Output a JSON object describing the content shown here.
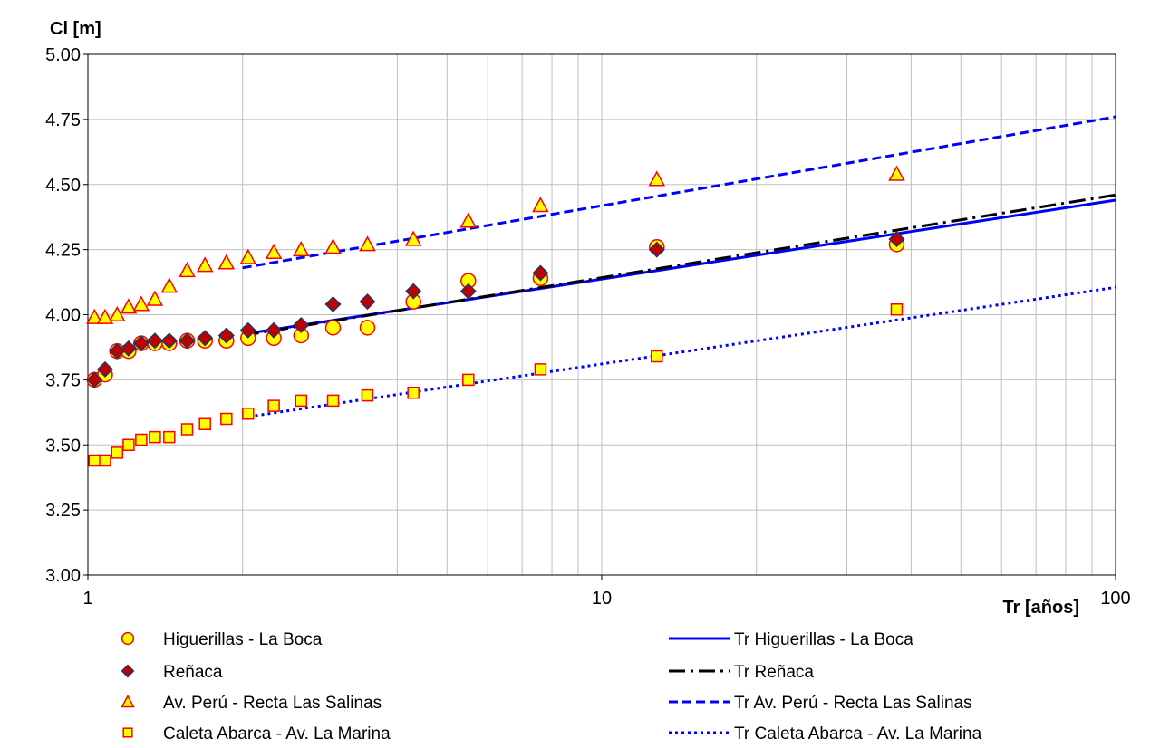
{
  "chart_data": {
    "type": "scatter",
    "xscale": "log",
    "xlim": [
      1,
      100
    ],
    "ylim": [
      3.0,
      5.0
    ],
    "grid": true,
    "legend_position": "bottom",
    "ylabel": "Cl [m]",
    "xlabel": "Tr [años]",
    "x_ticks": [
      "1",
      "10",
      "100"
    ],
    "y_ticks": [
      "3.00",
      "3.25",
      "3.50",
      "3.75",
      "4.00",
      "4.25",
      "4.50",
      "4.75",
      "5.00"
    ],
    "series": [
      {
        "name": "Higuerillas - La Boca",
        "marker": "circle",
        "fill": "#FFFF00",
        "stroke": "#FF0000",
        "points": [
          [
            1.03,
            3.75
          ],
          [
            1.08,
            3.77
          ],
          [
            1.14,
            3.86
          ],
          [
            1.2,
            3.86
          ],
          [
            1.27,
            3.89
          ],
          [
            1.35,
            3.89
          ],
          [
            1.44,
            3.89
          ],
          [
            1.56,
            3.9
          ],
          [
            1.69,
            3.9
          ],
          [
            1.86,
            3.9
          ],
          [
            2.05,
            3.91
          ],
          [
            2.3,
            3.91
          ],
          [
            2.6,
            3.92
          ],
          [
            3.0,
            3.95
          ],
          [
            3.5,
            3.95
          ],
          [
            4.3,
            4.05
          ],
          [
            5.5,
            4.13
          ],
          [
            7.6,
            4.14
          ],
          [
            12.8,
            4.26
          ],
          [
            37.5,
            4.27
          ]
        ]
      },
      {
        "name": "Reñaca",
        "marker": "diamond",
        "fill": "#C00000",
        "stroke": "#1F3864",
        "points": [
          [
            1.03,
            3.75
          ],
          [
            1.08,
            3.79
          ],
          [
            1.14,
            3.86
          ],
          [
            1.2,
            3.87
          ],
          [
            1.27,
            3.89
          ],
          [
            1.35,
            3.9
          ],
          [
            1.44,
            3.9
          ],
          [
            1.56,
            3.9
          ],
          [
            1.69,
            3.91
          ],
          [
            1.86,
            3.92
          ],
          [
            2.05,
            3.94
          ],
          [
            2.3,
            3.94
          ],
          [
            2.6,
            3.96
          ],
          [
            3.0,
            4.04
          ],
          [
            3.5,
            4.05
          ],
          [
            4.3,
            4.09
          ],
          [
            5.5,
            4.09
          ],
          [
            7.6,
            4.16
          ],
          [
            12.8,
            4.25
          ],
          [
            37.5,
            4.29
          ]
        ]
      },
      {
        "name": "Av. Perú - Recta Las Salinas",
        "marker": "triangle",
        "fill": "#FFFF00",
        "stroke": "#FF0000",
        "points": [
          [
            1.03,
            3.99
          ],
          [
            1.08,
            3.99
          ],
          [
            1.14,
            4.0
          ],
          [
            1.2,
            4.03
          ],
          [
            1.27,
            4.04
          ],
          [
            1.35,
            4.06
          ],
          [
            1.44,
            4.11
          ],
          [
            1.56,
            4.17
          ],
          [
            1.69,
            4.19
          ],
          [
            1.86,
            4.2
          ],
          [
            2.05,
            4.22
          ],
          [
            2.3,
            4.24
          ],
          [
            2.6,
            4.25
          ],
          [
            3.0,
            4.26
          ],
          [
            3.5,
            4.27
          ],
          [
            4.3,
            4.29
          ],
          [
            5.5,
            4.36
          ],
          [
            7.6,
            4.42
          ],
          [
            12.8,
            4.52
          ],
          [
            37.5,
            4.54
          ]
        ]
      },
      {
        "name": "Caleta Abarca - Av. La Marina",
        "marker": "square",
        "fill": "#FFFF00",
        "stroke": "#FF0000",
        "points": [
          [
            1.03,
            3.44
          ],
          [
            1.08,
            3.44
          ],
          [
            1.14,
            3.47
          ],
          [
            1.2,
            3.5
          ],
          [
            1.27,
            3.52
          ],
          [
            1.35,
            3.53
          ],
          [
            1.44,
            3.53
          ],
          [
            1.56,
            3.56
          ],
          [
            1.69,
            3.58
          ],
          [
            1.86,
            3.6
          ],
          [
            2.05,
            3.62
          ],
          [
            2.3,
            3.65
          ],
          [
            2.6,
            3.67
          ],
          [
            3.0,
            3.67
          ],
          [
            3.5,
            3.69
          ],
          [
            4.3,
            3.7
          ],
          [
            5.5,
            3.75
          ],
          [
            7.6,
            3.79
          ],
          [
            12.8,
            3.84
          ],
          [
            37.5,
            4.02
          ]
        ]
      }
    ],
    "trends": [
      {
        "name": "Tr Higuerillas - La Boca",
        "style": "solid",
        "color": "#0000FF",
        "points": [
          [
            2.0,
            3.925
          ],
          [
            100,
            4.44
          ]
        ]
      },
      {
        "name": "Tr Reñaca",
        "style": "dashdot",
        "color": "#000000",
        "points": [
          [
            2.0,
            3.92
          ],
          [
            100,
            4.46
          ]
        ]
      },
      {
        "name": "Tr Av. Perú - Recta Las Salinas",
        "style": "dashed",
        "color": "#0000FF",
        "points": [
          [
            2.0,
            4.18
          ],
          [
            100,
            4.76
          ]
        ]
      },
      {
        "name": "Tr Caleta Abarca - Av. La Marina",
        "style": "dotted",
        "color": "#0000FF",
        "points": [
          [
            2.0,
            3.605
          ],
          [
            100,
            4.105
          ]
        ]
      }
    ]
  }
}
